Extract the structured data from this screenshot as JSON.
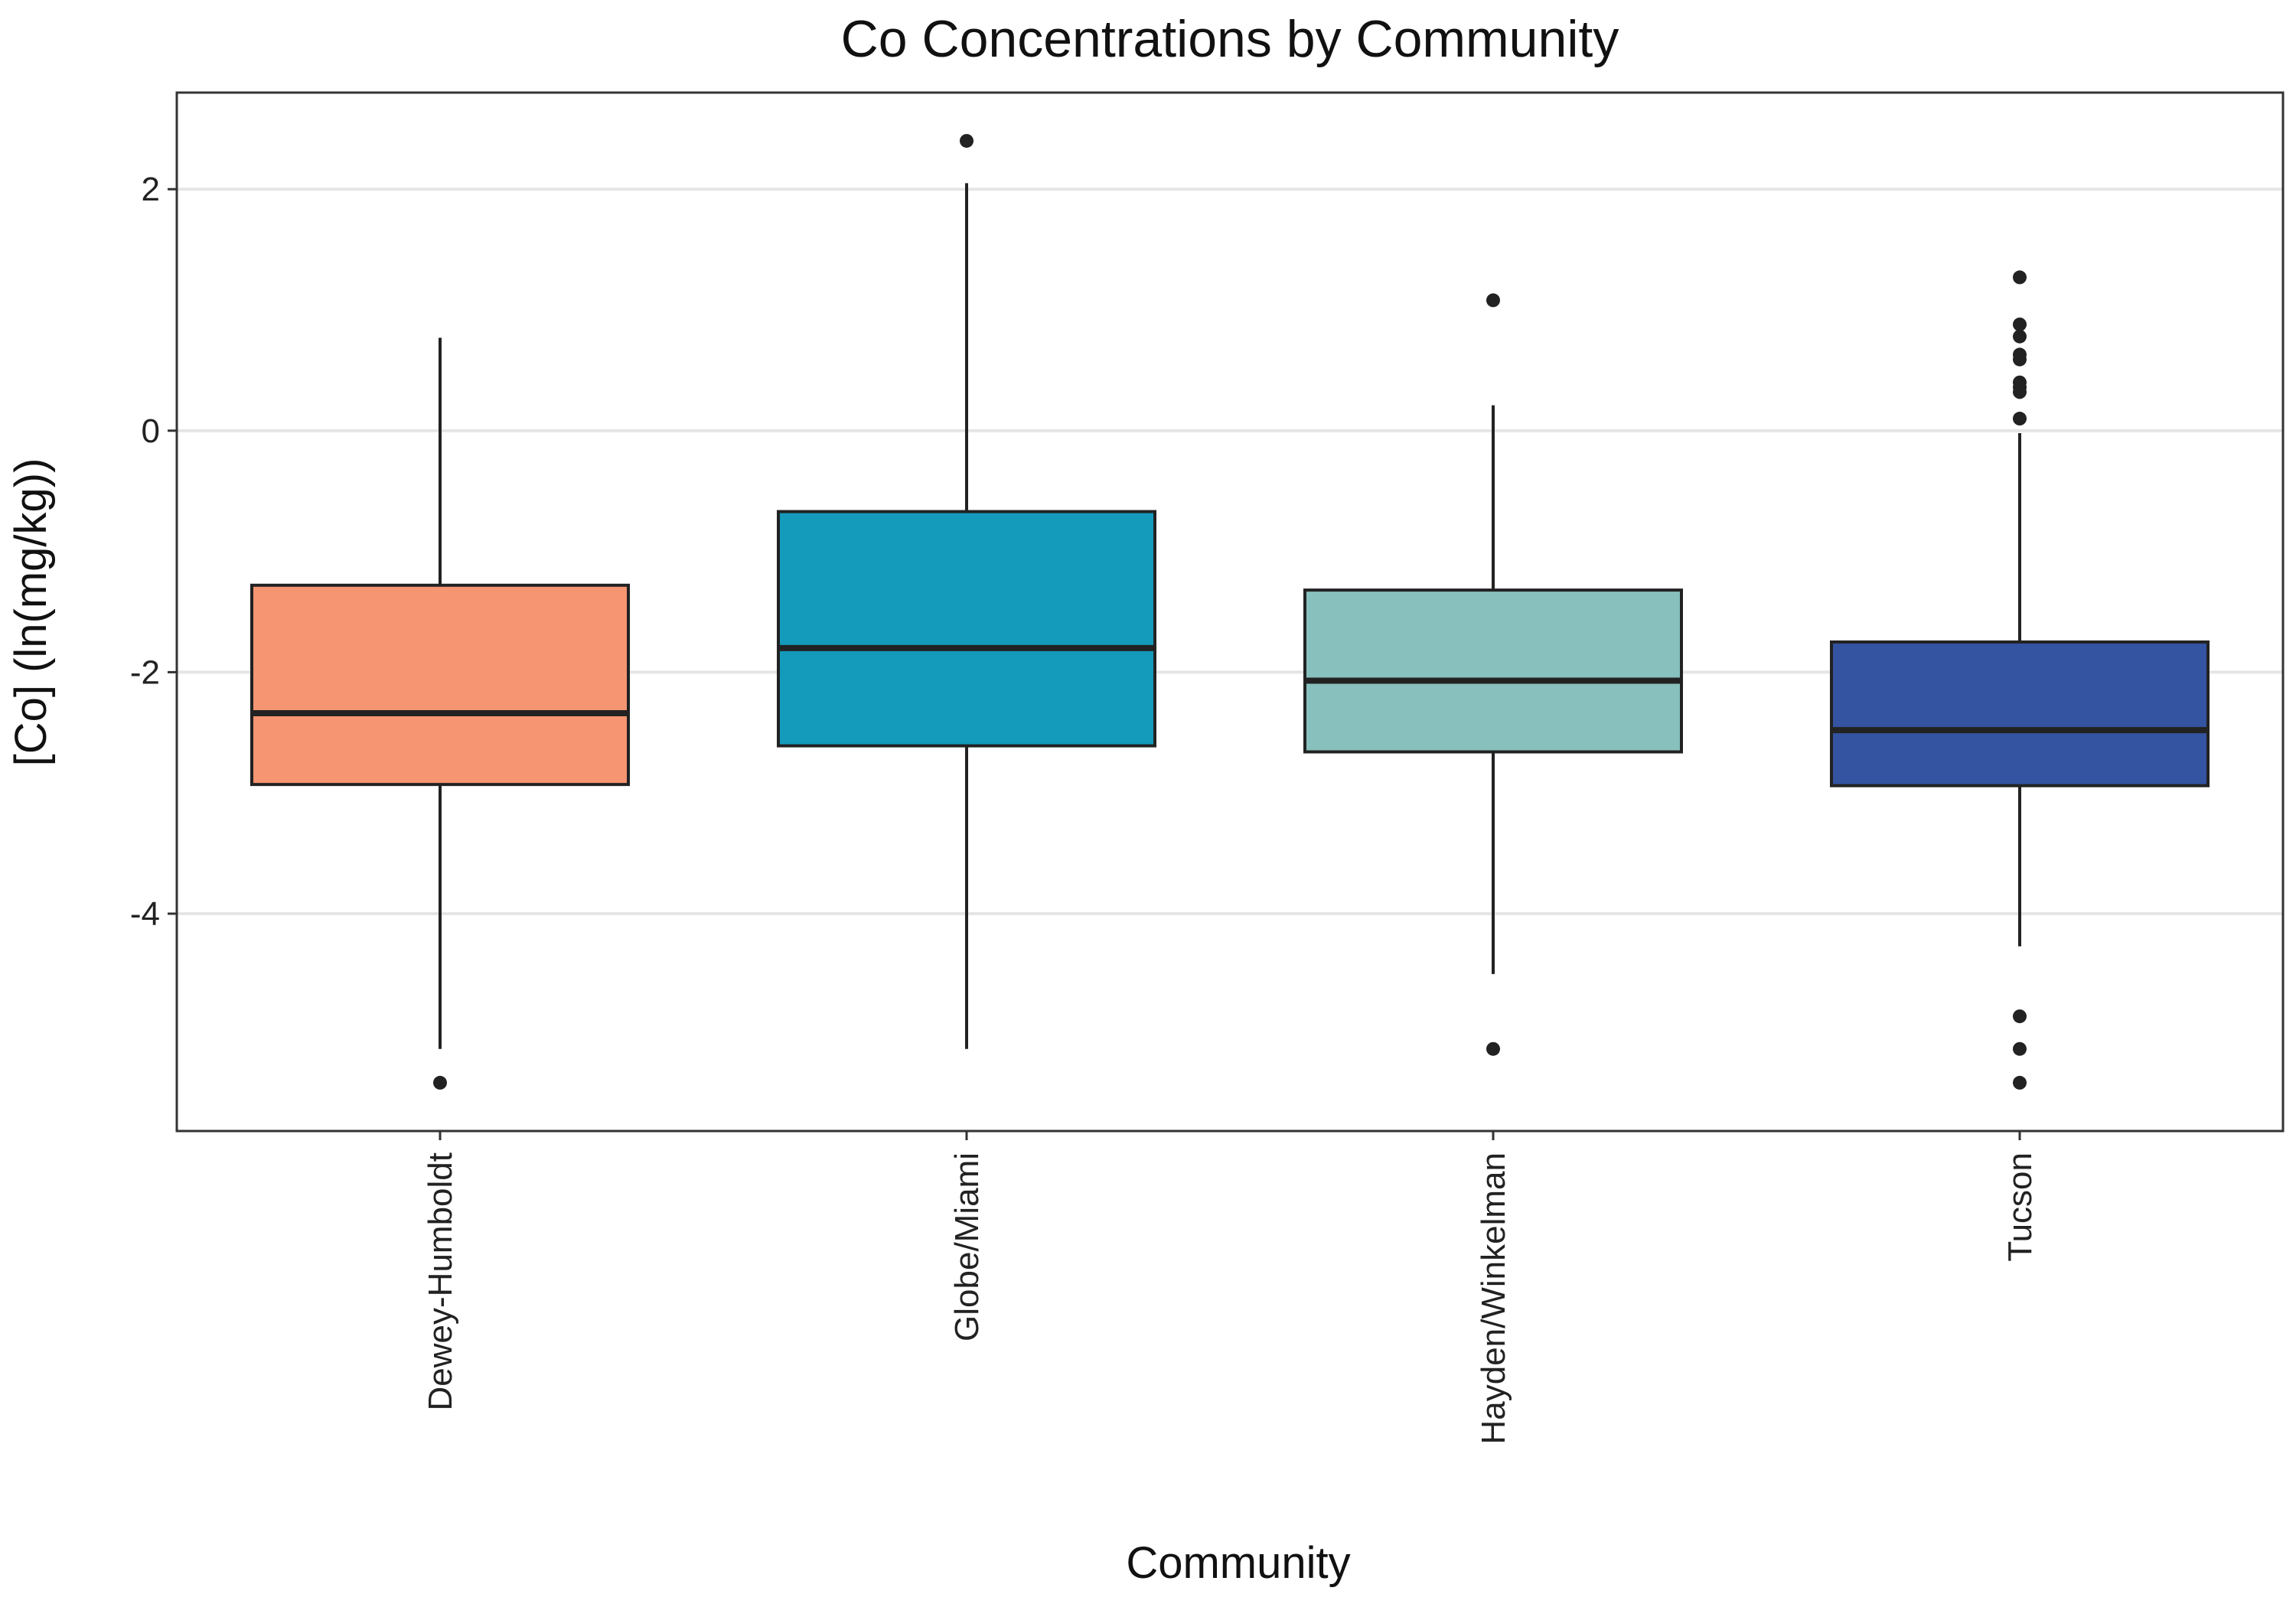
{
  "chart_data": {
    "type": "box",
    "title": "Co Concentrations by Community",
    "xlabel": "Community",
    "ylabel": "[Co] (ln(mg/kg))",
    "ylim": [
      -5.8,
      2.8
    ],
    "yticks": [
      2,
      0,
      -2,
      -4
    ],
    "ytick_labels": [
      "2",
      "0",
      "-2",
      "-4"
    ],
    "grid": true,
    "categories": [
      "Dewey-Humboldt",
      "Globe/Miami",
      "Hayden/Winkelman",
      "Tucson"
    ],
    "series": [
      {
        "category": "Dewey-Humboldt",
        "color": "#f69572",
        "whisker_low": -5.12,
        "q1": -2.93,
        "median": -2.34,
        "q3": -1.28,
        "whisker_high": 0.77,
        "outliers": [
          -5.4
        ]
      },
      {
        "category": "Globe/Miami",
        "color": "#149abb",
        "whisker_low": -5.12,
        "q1": -2.61,
        "median": -1.8,
        "q3": -0.67,
        "whisker_high": 2.05,
        "outliers": [
          2.4
        ]
      },
      {
        "category": "Hayden/Winkelman",
        "color": "#87c0bd",
        "whisker_low": -4.5,
        "q1": -2.66,
        "median": -2.07,
        "q3": -1.32,
        "whisker_high": 0.21,
        "outliers": [
          1.08,
          -5.12
        ]
      },
      {
        "category": "Tucson",
        "color": "#3453a0",
        "whisker_low": -4.27,
        "q1": -2.94,
        "median": -2.48,
        "q3": -1.75,
        "whisker_high": -0.02,
        "outliers": [
          1.27,
          0.88,
          0.78,
          0.63,
          0.59,
          0.4,
          0.36,
          0.32,
          0.1,
          -4.85,
          -5.12,
          -5.4
        ]
      }
    ]
  }
}
